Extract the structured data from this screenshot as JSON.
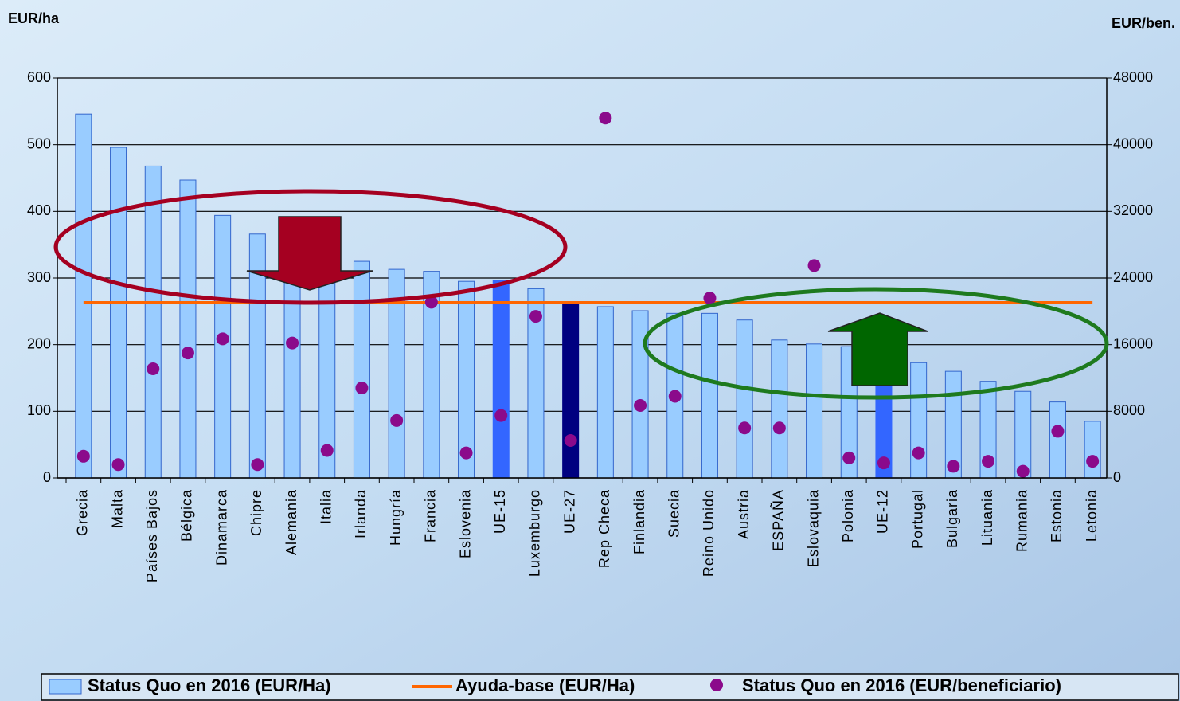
{
  "chart_data": {
    "type": "bar",
    "y_label": "EUR/ha",
    "y2_label": "EUR/ben.",
    "categories": [
      "Grecia",
      "Malta",
      "Países Bajos",
      "Bélgica",
      "Dinamarca",
      "Chipre",
      "Alemania",
      "Italia",
      "Irlanda",
      "Hungría",
      "Francia",
      "Eslovenia",
      "UE-15",
      "Luxemburgo",
      "UE-27",
      "Rep Checa",
      "Finlandia",
      "Suecia",
      "Reino Unido",
      "Austria",
      "ESPAÑA",
      "Eslovaquia",
      "Polonia",
      "UE-12",
      "Portugal",
      "Bulgaria",
      "Lituania",
      "Rumania",
      "Estonia",
      "Letonia"
    ],
    "series": [
      {
        "name": "Status Quo en 2016 (EUR/Ha)",
        "type": "bar",
        "color": "#99ccff",
        "colors": [
          "#99ccff",
          "#99ccff",
          "#99ccff",
          "#99ccff",
          "#99ccff",
          "#99ccff",
          "#99ccff",
          "#99ccff",
          "#99ccff",
          "#99ccff",
          "#99ccff",
          "#99ccff",
          "#3366ff",
          "#99ccff",
          "#000080",
          "#99ccff",
          "#99ccff",
          "#99ccff",
          "#99ccff",
          "#99ccff",
          "#99ccff",
          "#99ccff",
          "#99ccff",
          "#3366ff",
          "#99ccff",
          "#99ccff",
          "#99ccff",
          "#99ccff",
          "#99ccff",
          "#99ccff"
        ],
        "values": [
          546,
          496,
          468,
          447,
          394,
          366,
          302,
          300,
          325,
          313,
          310,
          295,
          297,
          284,
          263,
          257,
          251,
          247,
          247,
          237,
          207,
          201,
          197,
          160,
          173,
          160,
          145,
          130,
          114,
          85
        ]
      },
      {
        "name": "Ayuda-base (EUR/Ha)",
        "type": "line",
        "color": "#ff6600",
        "values": [
          263,
          263,
          263,
          263,
          263,
          263,
          263,
          263,
          263,
          263,
          263,
          263,
          263,
          263,
          263,
          263,
          263,
          263,
          263,
          263,
          263,
          263,
          263,
          263,
          263,
          263,
          263,
          263,
          263,
          263
        ]
      },
      {
        "name": "Status Quo en 2016 (EUR/beneficiario)",
        "type": "scatter",
        "color": "#8b0a8b",
        "axis": "y2",
        "values": [
          2600,
          1600,
          13100,
          15000,
          16700,
          1600,
          16200,
          3300,
          10800,
          6900,
          21100,
          3000,
          7500,
          19400,
          4500,
          43200,
          8700,
          9800,
          21600,
          6000,
          6000,
          25500,
          2400,
          1800,
          3000,
          1400,
          2000,
          800,
          5600,
          2000
        ]
      }
    ],
    "ylim": [
      0,
      600
    ],
    "yticks": [
      0,
      100,
      200,
      300,
      400,
      500,
      600
    ],
    "y2lim": [
      0,
      48000
    ],
    "y2ticks": [
      0,
      8000,
      16000,
      24000,
      32000,
      40000,
      48000
    ],
    "grid": true
  }
}
